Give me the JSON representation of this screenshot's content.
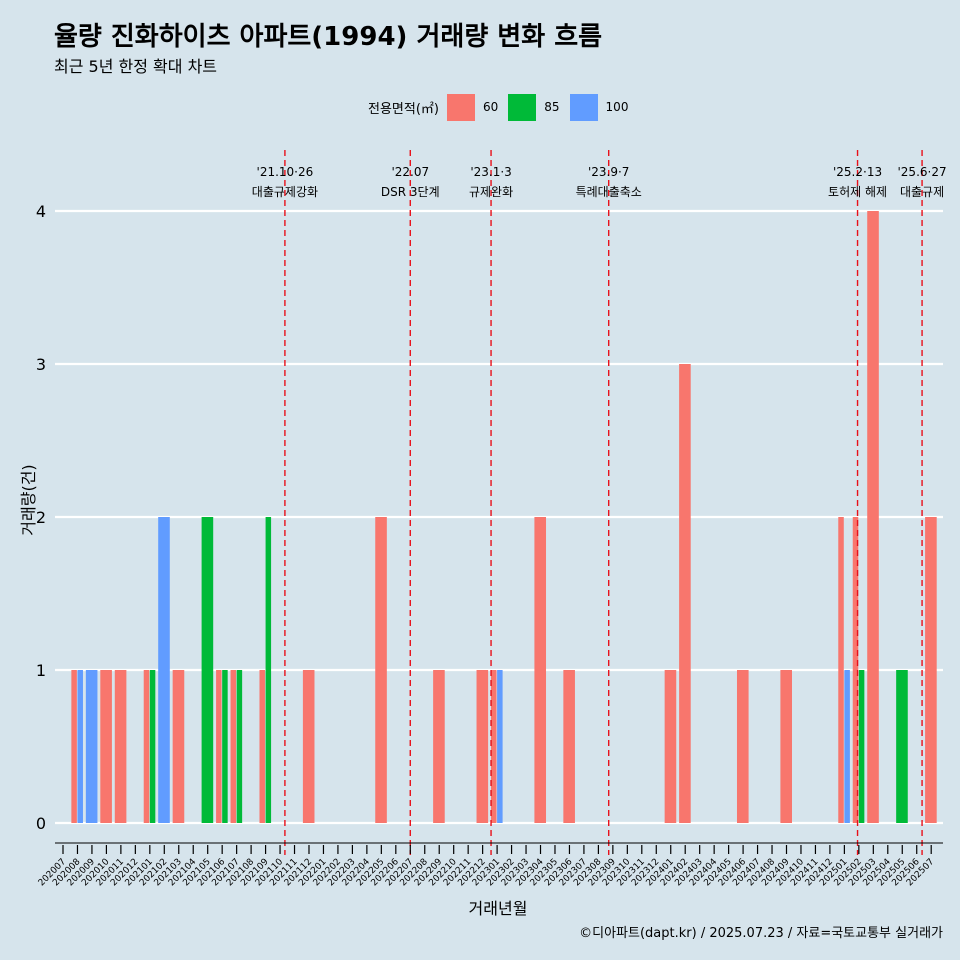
{
  "title": "율량 진화하이츠 아파트(1994) 거래량 변화 흐름",
  "subtitle": "최근 5년 한정 확대 차트",
  "caption": "©디아파트(dapt.kr) / 2025.07.23 / 자료=국토교통부 실거래가",
  "legend": {
    "title": "전용면적(㎡)",
    "items": [
      {
        "label": "60",
        "color": "#f8766d"
      },
      {
        "label": "85",
        "color": "#00ba38"
      },
      {
        "label": "100",
        "color": "#619cff"
      }
    ]
  },
  "chart_data": {
    "type": "bar",
    "xlabel": "거래년월",
    "ylabel": "거래량(건)",
    "ylim": [
      0,
      4
    ],
    "yticks": [
      0,
      1,
      2,
      3,
      4
    ],
    "grid": true,
    "legend_position": "top",
    "categories": [
      "202007",
      "202008",
      "202009",
      "202010",
      "202011",
      "202012",
      "202101",
      "202102",
      "202103",
      "202104",
      "202105",
      "202106",
      "202107",
      "202108",
      "202109",
      "202110",
      "202111",
      "202112",
      "202201",
      "202202",
      "202203",
      "202204",
      "202205",
      "202206",
      "202207",
      "202208",
      "202209",
      "202210",
      "202211",
      "202212",
      "202301",
      "202302",
      "202303",
      "202304",
      "202305",
      "202306",
      "202307",
      "202308",
      "202309",
      "202310",
      "202311",
      "202312",
      "202401",
      "202402",
      "202403",
      "202404",
      "202405",
      "202406",
      "202407",
      "202408",
      "202409",
      "202410",
      "202411",
      "202412",
      "202501",
      "202502",
      "202503",
      "202504",
      "202505",
      "202506",
      "202507"
    ],
    "series": [
      {
        "name": "60",
        "color": "#f8766d",
        "values": [
          0,
          1,
          0,
          1,
          1,
          0,
          1,
          0,
          1,
          0,
          0,
          1,
          1,
          0,
          1,
          0,
          0,
          1,
          0,
          0,
          0,
          0,
          2,
          0,
          0,
          0,
          1,
          0,
          0,
          1,
          1,
          0,
          0,
          2,
          0,
          1,
          0,
          0,
          0,
          0,
          0,
          0,
          1,
          3,
          0,
          0,
          0,
          1,
          0,
          0,
          1,
          0,
          0,
          0,
          2,
          2,
          4,
          0,
          0,
          0,
          2
        ]
      },
      {
        "name": "85",
        "color": "#00ba38",
        "values": [
          0,
          0,
          0,
          0,
          0,
          0,
          1,
          0,
          0,
          0,
          2,
          1,
          1,
          0,
          2,
          0,
          0,
          0,
          0,
          0,
          0,
          0,
          0,
          0,
          0,
          0,
          0,
          0,
          0,
          0,
          0,
          0,
          0,
          0,
          0,
          0,
          0,
          0,
          0,
          0,
          0,
          0,
          0,
          0,
          0,
          0,
          0,
          0,
          0,
          0,
          0,
          0,
          0,
          0,
          0,
          1,
          0,
          0,
          1,
          0,
          0
        ]
      },
      {
        "name": "100",
        "color": "#619cff",
        "values": [
          0,
          1,
          1,
          0,
          0,
          0,
          0,
          2,
          0,
          0,
          0,
          0,
          0,
          0,
          0,
          0,
          0,
          0,
          0,
          0,
          0,
          0,
          0,
          0,
          0,
          0,
          0,
          0,
          0,
          0,
          1,
          0,
          0,
          0,
          0,
          0,
          0,
          0,
          0,
          0,
          0,
          0,
          0,
          0,
          0,
          0,
          0,
          0,
          0,
          0,
          0,
          0,
          0,
          0,
          1,
          0,
          0,
          0,
          0,
          0,
          0
        ]
      }
    ],
    "annotations": [
      {
        "date": "2021-10-26",
        "x_category": "202110",
        "line1": "'21.10·26",
        "line2": "대출규제강화"
      },
      {
        "date": "2022-07",
        "x_category": "202207",
        "line1": "'22.07",
        "line2": "DSR 3단계"
      },
      {
        "date": "2023-01-03",
        "x_category": "202301",
        "line1": "'23.1·3",
        "line2": "규제완화"
      },
      {
        "date": "2023-09-07",
        "x_category": "202309",
        "line1": "'23.9·7",
        "line2": "특례대출축소"
      },
      {
        "date": "2025-02-13",
        "x_category": "202502",
        "line1": "'25.2·13",
        "line2": "토허제 해제"
      },
      {
        "date": "2025-06-27",
        "x_category": "202506",
        "line1": "'25.6·27",
        "line2": "대출규제"
      }
    ]
  }
}
